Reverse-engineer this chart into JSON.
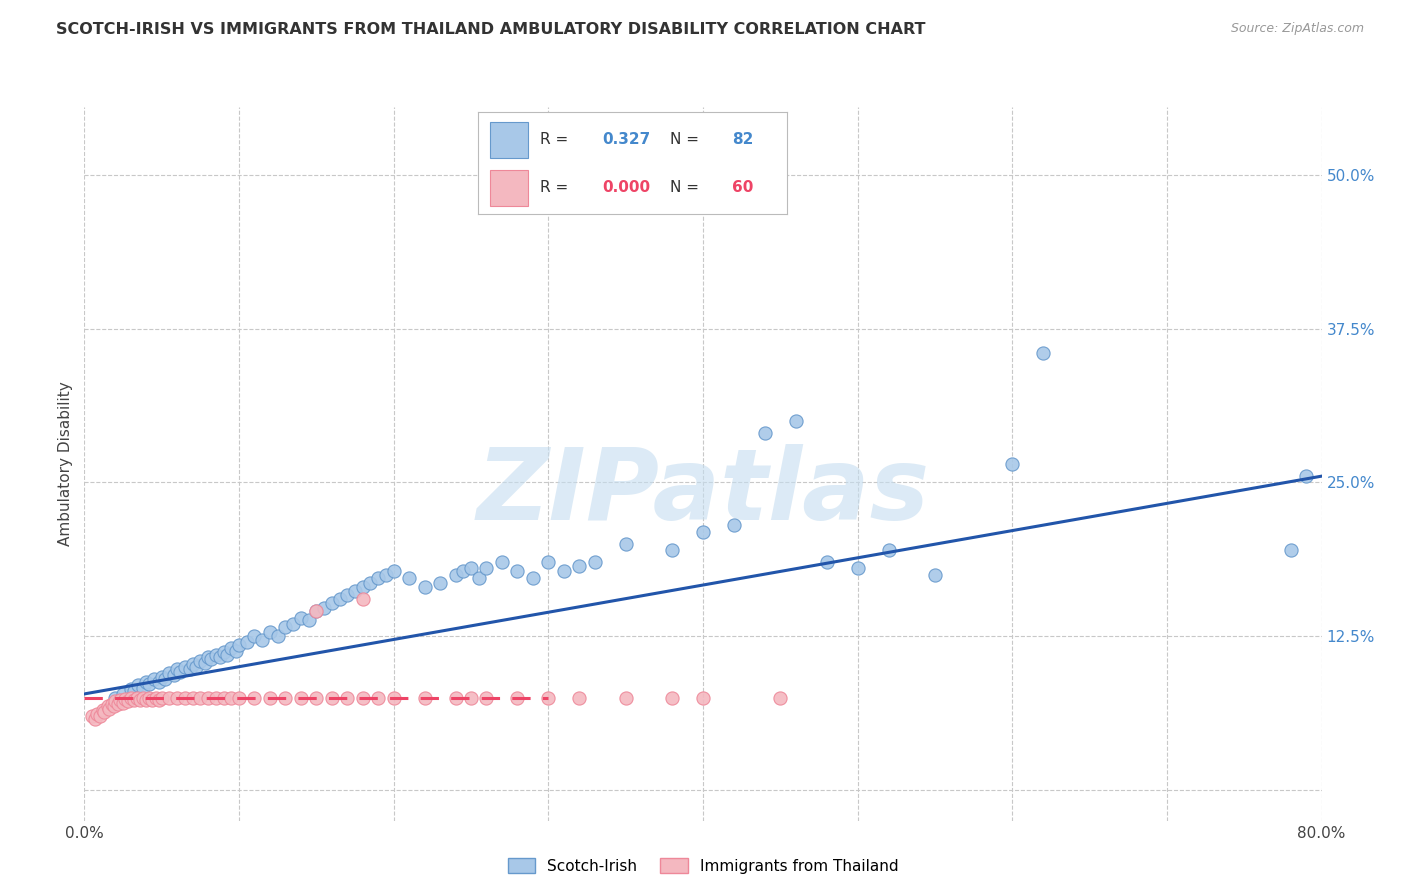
{
  "title": "SCOTCH-IRISH VS IMMIGRANTS FROM THAILAND AMBULATORY DISABILITY CORRELATION CHART",
  "source": "Source: ZipAtlas.com",
  "ylabel": "Ambulatory Disability",
  "xlim": [
    0,
    0.8
  ],
  "ylim": [
    -0.025,
    0.555
  ],
  "yticks": [
    0.0,
    0.125,
    0.25,
    0.375,
    0.5
  ],
  "xticks": [
    0.0,
    0.1,
    0.2,
    0.3,
    0.4,
    0.5,
    0.6,
    0.7,
    0.8
  ],
  "xtick_labels": [
    "0.0%",
    "",
    "",
    "",
    "",
    "",
    "",
    "",
    "80.0%"
  ],
  "ytick_labels_right": [
    "",
    "12.5%",
    "25.0%",
    "37.5%",
    "50.0%"
  ],
  "grid_color": "#c8c8c8",
  "background_color": "#ffffff",
  "watermark_text": "ZIPatlas",
  "scotch_irish_R": 0.327,
  "scotch_irish_N": 82,
  "thailand_R": 0.0,
  "thailand_N": 60,
  "scotch_irish_color": "#a8c8e8",
  "thailand_color": "#f4b8c0",
  "scotch_irish_edge": "#6699cc",
  "thailand_edge": "#ee8899",
  "trendline_scotch_color": "#2255aa",
  "trendline_thai_color": "#ee4466",
  "scotch_trendline_x": [
    0.0,
    0.8
  ],
  "scotch_trendline_y": [
    0.078,
    0.255
  ],
  "thai_trendline_x": [
    0.0,
    0.3
  ],
  "thai_trendline_y": [
    0.075,
    0.075
  ],
  "scotch_irish_x": [
    0.02,
    0.022,
    0.025,
    0.028,
    0.03,
    0.032,
    0.035,
    0.038,
    0.04,
    0.042,
    0.045,
    0.048,
    0.05,
    0.052,
    0.055,
    0.058,
    0.06,
    0.062,
    0.065,
    0.068,
    0.07,
    0.072,
    0.075,
    0.078,
    0.08,
    0.082,
    0.085,
    0.088,
    0.09,
    0.092,
    0.095,
    0.098,
    0.1,
    0.105,
    0.11,
    0.115,
    0.12,
    0.125,
    0.13,
    0.135,
    0.14,
    0.145,
    0.15,
    0.155,
    0.16,
    0.165,
    0.17,
    0.175,
    0.18,
    0.185,
    0.19,
    0.195,
    0.2,
    0.21,
    0.22,
    0.23,
    0.24,
    0.245,
    0.25,
    0.255,
    0.26,
    0.27,
    0.28,
    0.29,
    0.3,
    0.31,
    0.32,
    0.33,
    0.35,
    0.38,
    0.4,
    0.42,
    0.44,
    0.46,
    0.48,
    0.5,
    0.52,
    0.55,
    0.6,
    0.78,
    0.79,
    0.62
  ],
  "scotch_irish_y": [
    0.075,
    0.072,
    0.078,
    0.074,
    0.082,
    0.08,
    0.085,
    0.083,
    0.088,
    0.086,
    0.09,
    0.088,
    0.092,
    0.09,
    0.095,
    0.093,
    0.098,
    0.096,
    0.1,
    0.098,
    0.102,
    0.1,
    0.105,
    0.103,
    0.108,
    0.106,
    0.11,
    0.108,
    0.112,
    0.11,
    0.115,
    0.113,
    0.118,
    0.12,
    0.125,
    0.122,
    0.128,
    0.125,
    0.132,
    0.135,
    0.14,
    0.138,
    0.145,
    0.148,
    0.152,
    0.155,
    0.158,
    0.162,
    0.165,
    0.168,
    0.172,
    0.175,
    0.178,
    0.172,
    0.165,
    0.168,
    0.175,
    0.178,
    0.18,
    0.172,
    0.18,
    0.185,
    0.178,
    0.172,
    0.185,
    0.178,
    0.182,
    0.185,
    0.2,
    0.195,
    0.21,
    0.215,
    0.29,
    0.3,
    0.185,
    0.18,
    0.195,
    0.175,
    0.265,
    0.195,
    0.255,
    0.355
  ],
  "thailand_x": [
    0.005,
    0.007,
    0.008,
    0.01,
    0.012,
    0.013,
    0.015,
    0.016,
    0.018,
    0.019,
    0.02,
    0.022,
    0.023,
    0.025,
    0.026,
    0.028,
    0.03,
    0.032,
    0.034,
    0.036,
    0.038,
    0.04,
    0.042,
    0.044,
    0.046,
    0.048,
    0.05,
    0.055,
    0.06,
    0.065,
    0.07,
    0.075,
    0.08,
    0.085,
    0.09,
    0.095,
    0.1,
    0.11,
    0.12,
    0.13,
    0.14,
    0.15,
    0.16,
    0.17,
    0.18,
    0.19,
    0.2,
    0.22,
    0.24,
    0.26,
    0.15,
    0.18,
    0.28,
    0.3,
    0.32,
    0.35,
    0.38,
    0.4,
    0.45,
    0.25
  ],
  "thailand_y": [
    0.06,
    0.058,
    0.062,
    0.06,
    0.065,
    0.063,
    0.068,
    0.066,
    0.07,
    0.068,
    0.072,
    0.07,
    0.073,
    0.071,
    0.074,
    0.072,
    0.075,
    0.073,
    0.075,
    0.073,
    0.075,
    0.073,
    0.075,
    0.073,
    0.075,
    0.073,
    0.075,
    0.075,
    0.075,
    0.075,
    0.075,
    0.075,
    0.075,
    0.075,
    0.075,
    0.075,
    0.075,
    0.075,
    0.075,
    0.075,
    0.075,
    0.075,
    0.075,
    0.075,
    0.075,
    0.075,
    0.075,
    0.075,
    0.075,
    0.075,
    0.145,
    0.155,
    0.075,
    0.075,
    0.075,
    0.075,
    0.075,
    0.075,
    0.075,
    0.075
  ]
}
